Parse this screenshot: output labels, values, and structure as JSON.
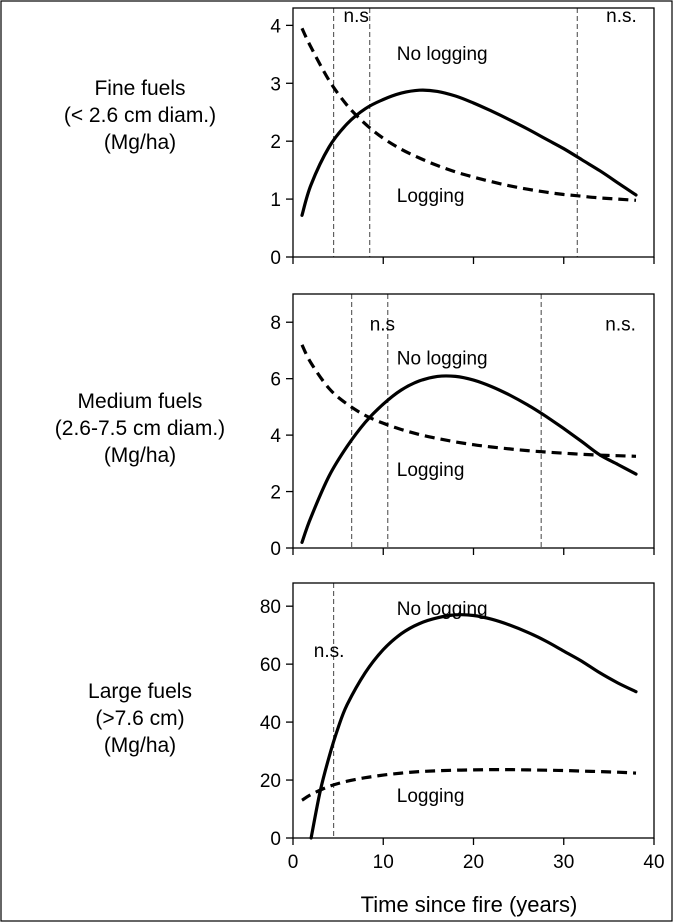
{
  "chart_data": [
    {
      "type": "line",
      "ylabel_lines": [
        "Fine fuels",
        "(< 2.6 cm diam.)",
        "(Mg/ha)"
      ],
      "ylim": [
        0,
        4.3
      ],
      "yticks": [
        0,
        1,
        2,
        3,
        4
      ],
      "xlim": [
        0,
        40
      ],
      "xticks": [
        0,
        10,
        20,
        30,
        40
      ],
      "show_xticklabels": false,
      "series": [
        {
          "name": "No logging",
          "style": "solid",
          "x": [
            1,
            2,
            4,
            6,
            8,
            10,
            12,
            14,
            16,
            18,
            20,
            22,
            24,
            26,
            28,
            30,
            32,
            34,
            36,
            38
          ],
          "y": [
            0.72,
            1.25,
            1.9,
            2.3,
            2.56,
            2.72,
            2.83,
            2.88,
            2.86,
            2.78,
            2.66,
            2.52,
            2.37,
            2.21,
            2.04,
            1.87,
            1.68,
            1.49,
            1.28,
            1.07
          ]
        },
        {
          "name": "Logging",
          "style": "dashed",
          "x": [
            1,
            2,
            4,
            6,
            8,
            10,
            12,
            14,
            16,
            18,
            20,
            22,
            24,
            26,
            28,
            30,
            32,
            34,
            36,
            38
          ],
          "y": [
            3.95,
            3.62,
            3.05,
            2.62,
            2.3,
            2.05,
            1.86,
            1.71,
            1.58,
            1.47,
            1.38,
            1.3,
            1.23,
            1.17,
            1.12,
            1.08,
            1.05,
            1.02,
            1.0,
            0.98
          ]
        }
      ],
      "vlines": [
        4.5,
        8.5,
        31.5
      ],
      "annotations": [
        {
          "text": "n.s",
          "x": 5.6,
          "y": 4.06
        },
        {
          "text": "n.s.",
          "x": 34.7,
          "y": 4.06
        },
        {
          "text": "No logging",
          "x": 11.5,
          "y": 3.4
        },
        {
          "text": "Logging",
          "x": 11.5,
          "y": 0.95
        }
      ]
    },
    {
      "type": "line",
      "ylabel_lines": [
        "Medium fuels",
        "(2.6-7.5 cm diam.)",
        "(Mg/ha)"
      ],
      "ylim": [
        0,
        9
      ],
      "yticks": [
        0,
        2,
        4,
        6,
        8
      ],
      "xlim": [
        0,
        40
      ],
      "xticks": [
        0,
        10,
        20,
        30,
        40
      ],
      "show_xticklabels": false,
      "series": [
        {
          "name": "No logging",
          "style": "solid",
          "x": [
            1,
            2,
            4,
            6,
            8,
            10,
            12,
            14,
            16,
            18,
            20,
            22,
            24,
            26,
            28,
            30,
            32,
            34,
            36,
            38
          ],
          "y": [
            0.2,
            1.1,
            2.55,
            3.6,
            4.45,
            5.1,
            5.6,
            5.92,
            6.08,
            6.08,
            5.95,
            5.72,
            5.42,
            5.07,
            4.67,
            4.23,
            3.77,
            3.3,
            2.96,
            2.62
          ]
        },
        {
          "name": "Logging",
          "style": "dashed",
          "x": [
            1,
            2,
            4,
            6,
            8,
            10,
            12,
            14,
            16,
            18,
            20,
            22,
            24,
            26,
            28,
            30,
            32,
            34,
            36,
            38
          ],
          "y": [
            7.2,
            6.55,
            5.65,
            5.1,
            4.7,
            4.42,
            4.2,
            4.02,
            3.88,
            3.76,
            3.66,
            3.58,
            3.51,
            3.45,
            3.4,
            3.36,
            3.32,
            3.29,
            3.27,
            3.25
          ]
        }
      ],
      "vlines": [
        6.5,
        10.5,
        27.5
      ],
      "annotations": [
        {
          "text": "n.s",
          "x": 8.5,
          "y": 7.7
        },
        {
          "text": "n.s.",
          "x": 34.6,
          "y": 7.7
        },
        {
          "text": "No logging",
          "x": 11.5,
          "y": 6.5
        },
        {
          "text": "Logging",
          "x": 11.5,
          "y": 2.55
        }
      ]
    },
    {
      "type": "line",
      "ylabel_lines": [
        "Large fuels",
        "(>7.6 cm)",
        "(Mg/ha)"
      ],
      "ylim": [
        0,
        88
      ],
      "yticks": [
        0,
        20,
        40,
        60,
        80
      ],
      "xlim": [
        0,
        40
      ],
      "xticks": [
        0,
        10,
        20,
        30,
        40
      ],
      "xticklabels": [
        "0",
        "10",
        "20",
        "30",
        "40"
      ],
      "show_xticklabels": true,
      "xlabel": "Time since fire (years)",
      "series": [
        {
          "name": "No logging",
          "style": "solid",
          "x": [
            2,
            3,
            4,
            5,
            6,
            8,
            10,
            12,
            14,
            16,
            18,
            20,
            22,
            24,
            26,
            28,
            30,
            32,
            34,
            36,
            38
          ],
          "y": [
            0,
            16,
            28,
            38,
            46,
            57,
            65,
            70.5,
            74,
            76,
            77,
            76.8,
            75.5,
            73.5,
            71,
            68,
            64.5,
            61,
            57,
            53.5,
            50.5
          ]
        },
        {
          "name": "Logging",
          "style": "dashed",
          "x": [
            1,
            2,
            4,
            6,
            8,
            10,
            12,
            14,
            16,
            18,
            20,
            22,
            24,
            26,
            28,
            30,
            32,
            34,
            36,
            38
          ],
          "y": [
            13,
            15,
            17.8,
            19.6,
            20.8,
            21.7,
            22.4,
            22.9,
            23.2,
            23.4,
            23.5,
            23.6,
            23.6,
            23.5,
            23.4,
            23.3,
            23.1,
            22.9,
            22.7,
            22.4
          ]
        }
      ],
      "vlines": [
        4.5
      ],
      "annotations": [
        {
          "text": "n.s.",
          "x": 2.3,
          "y": 62.5
        },
        {
          "text": "No logging",
          "x": 11.5,
          "y": 77
        },
        {
          "text": "Logging",
          "x": 11.5,
          "y": 12.5
        }
      ]
    }
  ]
}
